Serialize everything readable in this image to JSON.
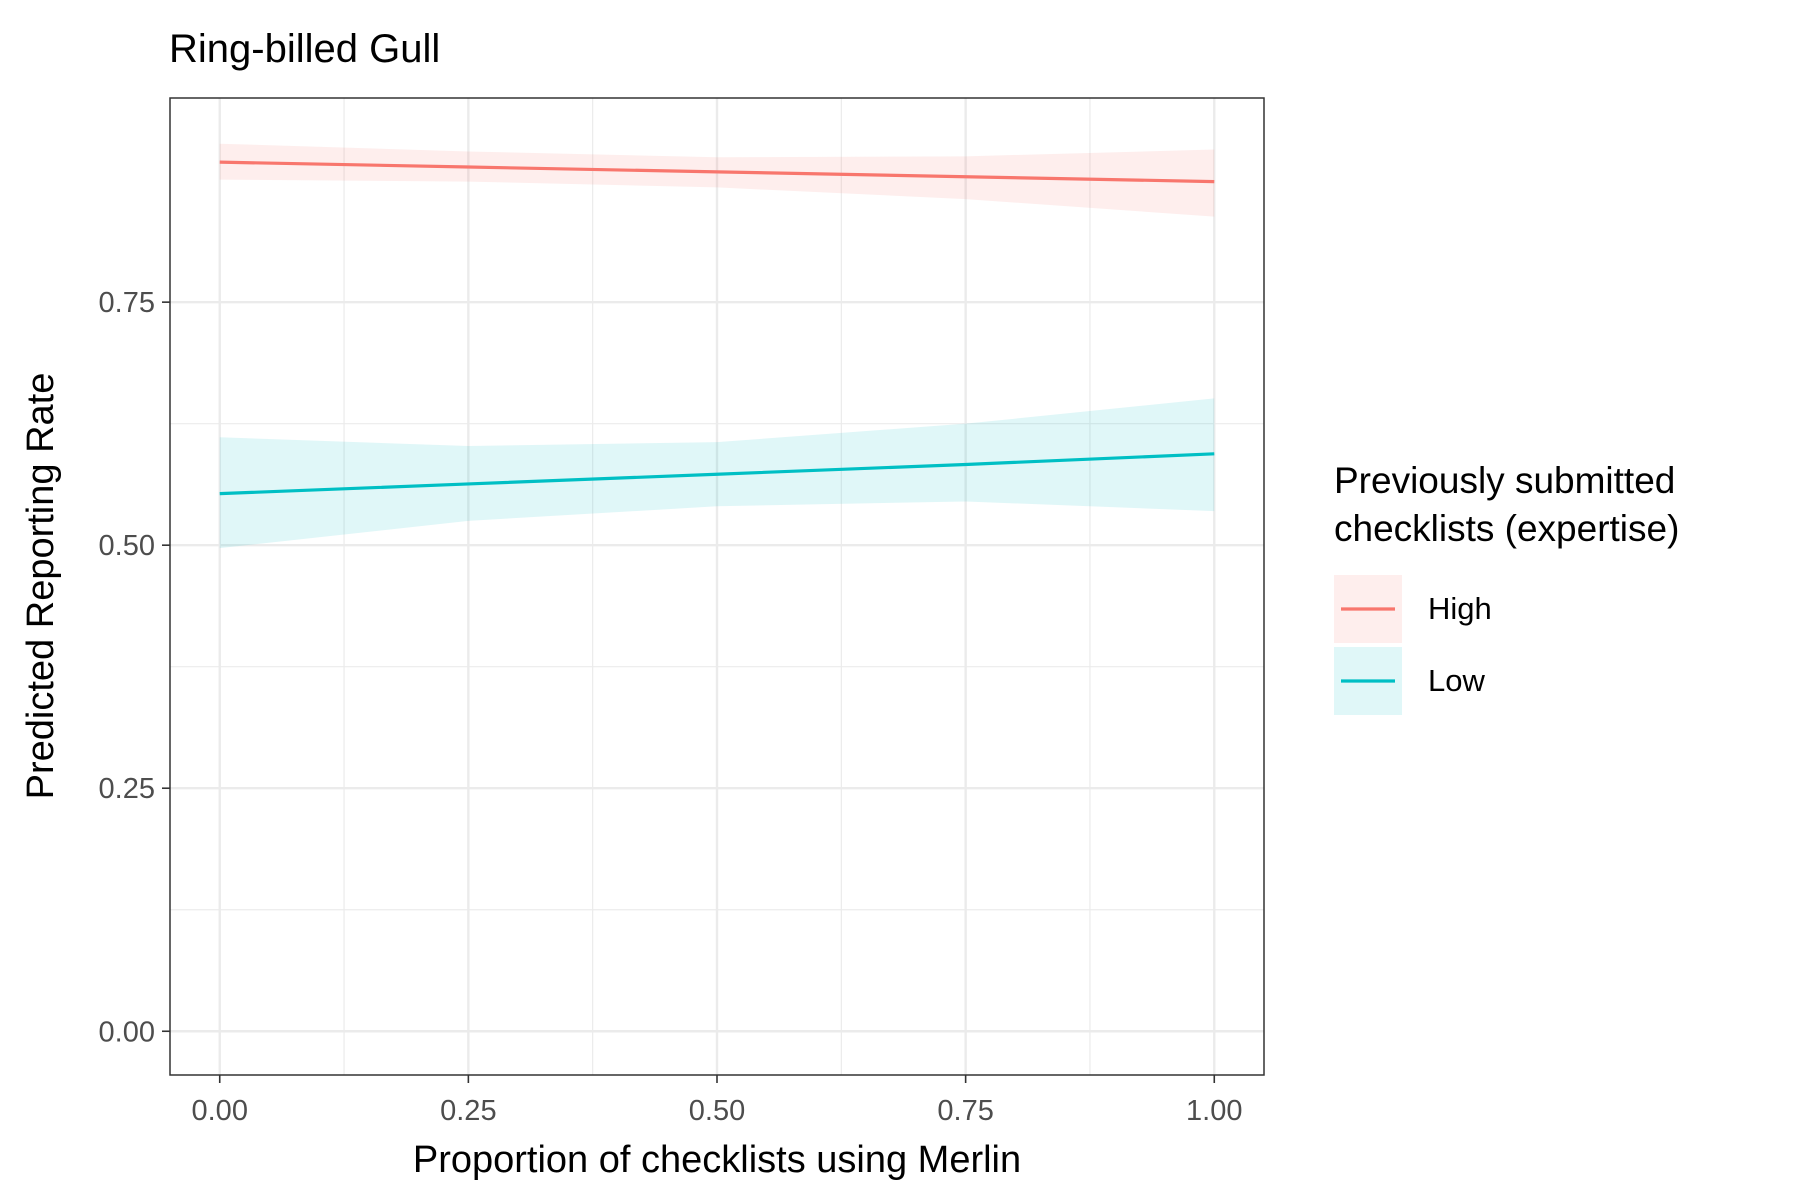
{
  "chart_data": {
    "type": "line",
    "title": "Ring-billed Gull",
    "xlabel": "Proportion of checklists using Merlin",
    "ylabel": "Predicted Reporting Rate",
    "xlim": [
      -0.05,
      1.05
    ],
    "ylim": [
      -0.045,
      0.96
    ],
    "x_ticks": [
      0.0,
      0.25,
      0.5,
      0.75,
      1.0
    ],
    "x_tick_labels": [
      "0.00",
      "0.25",
      "0.50",
      "0.75",
      "1.00"
    ],
    "y_ticks": [
      0.0,
      0.25,
      0.5,
      0.75
    ],
    "y_tick_labels": [
      "0.00",
      "0.25",
      "0.50",
      "0.75"
    ],
    "grid": true,
    "legend": {
      "title_lines": [
        "Previously submitted",
        "checklists (expertise)"
      ],
      "placement": "right"
    },
    "x": [
      0.0,
      0.25,
      0.5,
      0.75,
      1.0
    ],
    "series": [
      {
        "name": "High",
        "color": "#F8766D",
        "values": [
          0.894,
          0.889,
          0.884,
          0.879,
          0.874
        ],
        "lower": [
          0.876,
          0.874,
          0.868,
          0.856,
          0.838
        ],
        "upper": [
          0.913,
          0.905,
          0.899,
          0.9,
          0.907
        ]
      },
      {
        "name": "Low",
        "color": "#00BFC4",
        "values": [
          0.553,
          0.563,
          0.573,
          0.583,
          0.594
        ],
        "lower": [
          0.497,
          0.525,
          0.54,
          0.545,
          0.535
        ],
        "upper": [
          0.611,
          0.602,
          0.606,
          0.625,
          0.651
        ]
      }
    ]
  }
}
